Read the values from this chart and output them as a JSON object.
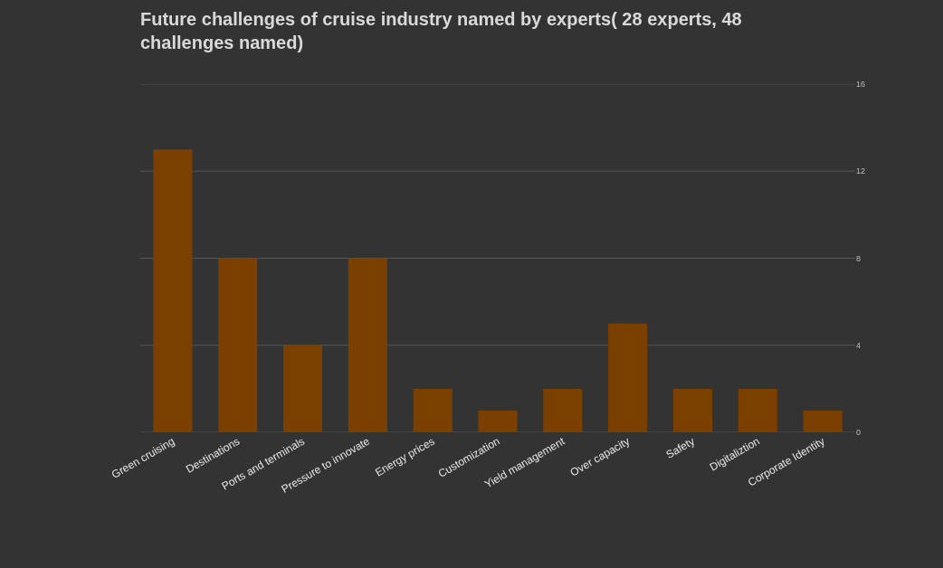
{
  "chart_data": {
    "type": "bar",
    "title": "Future challenges of cruise industry named by experts( 28 experts, 48 challenges named)",
    "categories": [
      "Green cruising",
      "Destinations",
      "Ports and terminals",
      "Pressure to innovate",
      "Energy prices",
      "Customization",
      "Yield management",
      "Over capacity",
      "Safety",
      "Digitaliztion",
      "Corporate Identity"
    ],
    "values": [
      13,
      8,
      4,
      8,
      2,
      1,
      2,
      5,
      2,
      2,
      1
    ],
    "color": "#7b3f00",
    "ylim": [
      0,
      16
    ],
    "yticks": [
      0,
      4,
      8,
      12,
      16
    ],
    "grid": "y"
  }
}
